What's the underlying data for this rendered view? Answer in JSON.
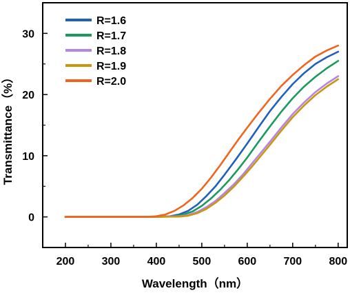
{
  "chart_data": {
    "type": "line",
    "xlabel": "Wavelength（nm）",
    "ylabel": "Transmittance（%）",
    "xlim": [
      150,
      820
    ],
    "ylim": [
      -5,
      35
    ],
    "xticks": [
      200,
      300,
      400,
      500,
      600,
      700,
      800
    ],
    "yticks": [
      0,
      10,
      20,
      30
    ],
    "grid": false,
    "legend_position": "top-left",
    "series": [
      {
        "name": "R=1.6",
        "color": "#1f5fbf",
        "x": [
          200,
          300,
          400,
          430,
          450,
          470,
          490,
          510,
          530,
          550,
          575,
          600,
          625,
          650,
          675,
          700,
          725,
          750,
          775,
          800
        ],
        "y": [
          0,
          0,
          0,
          0.1,
          0.4,
          1.0,
          2.0,
          3.4,
          5.0,
          6.9,
          9.4,
          12.0,
          14.7,
          17.3,
          19.6,
          21.7,
          23.5,
          25.0,
          26.1,
          27.0
        ]
      },
      {
        "name": "R=1.7",
        "color": "#1a9a5c",
        "x": [
          200,
          300,
          400,
          440,
          460,
          480,
          500,
          520,
          540,
          560,
          580,
          600,
          625,
          650,
          675,
          700,
          725,
          750,
          775,
          800
        ],
        "y": [
          0,
          0,
          0,
          0.1,
          0.4,
          0.9,
          1.8,
          3.0,
          4.4,
          6.0,
          7.8,
          9.7,
          12.3,
          14.8,
          17.2,
          19.4,
          21.3,
          22.9,
          24.3,
          25.5
        ]
      },
      {
        "name": "R=1.8",
        "color": "#b585e0",
        "x": [
          200,
          300,
          400,
          450,
          470,
          490,
          510,
          530,
          550,
          570,
          590,
          610,
          630,
          650,
          675,
          700,
          725,
          750,
          775,
          800
        ],
        "y": [
          0,
          0,
          0,
          0.1,
          0.3,
          0.8,
          1.6,
          2.6,
          3.9,
          5.3,
          6.9,
          8.7,
          10.5,
          12.3,
          14.6,
          16.8,
          18.7,
          20.4,
          21.8,
          23.0
        ]
      },
      {
        "name": "R=1.9",
        "color": "#c8960f",
        "x": [
          200,
          300,
          400,
          450,
          470,
          490,
          510,
          530,
          550,
          570,
          590,
          610,
          630,
          650,
          675,
          700,
          725,
          750,
          775,
          800
        ],
        "y": [
          0,
          0,
          0,
          0.05,
          0.2,
          0.6,
          1.3,
          2.3,
          3.5,
          4.9,
          6.5,
          8.2,
          10.0,
          11.8,
          14.1,
          16.3,
          18.2,
          19.9,
          21.3,
          22.5
        ]
      },
      {
        "name": "R=2.0",
        "color": "#f0641e",
        "x": [
          200,
          300,
          380,
          400,
          420,
          440,
          460,
          480,
          500,
          520,
          540,
          560,
          580,
          600,
          625,
          650,
          675,
          700,
          725,
          750,
          775,
          800
        ],
        "y": [
          0,
          0,
          0,
          0.1,
          0.4,
          1.0,
          1.9,
          3.1,
          4.6,
          6.4,
          8.4,
          10.5,
          12.6,
          14.6,
          17.0,
          19.3,
          21.4,
          23.2,
          24.8,
          26.2,
          27.2,
          28.0
        ]
      }
    ]
  }
}
